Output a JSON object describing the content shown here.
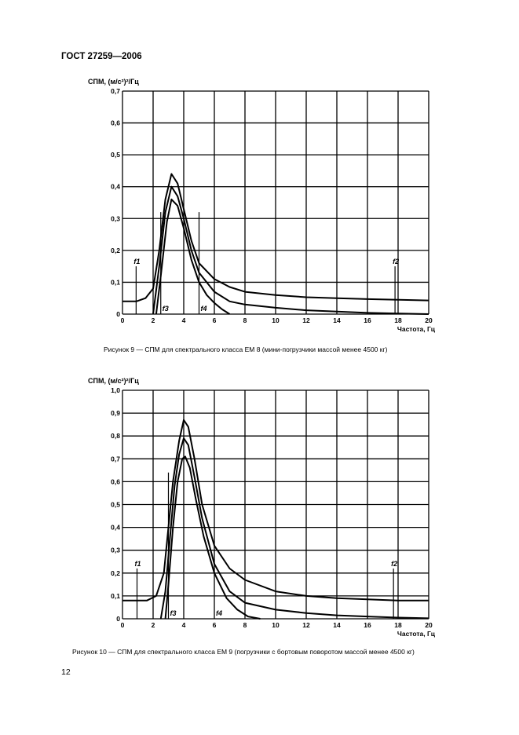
{
  "header": {
    "doc_title": "ГОСТ 27259—2006"
  },
  "page_number": "12",
  "chart_data": [
    {
      "type": "line",
      "ylabel": "СПМ, (м/с²)²/Гц",
      "xlabel": "Частота, Гц",
      "xlim": [
        0,
        20
      ],
      "ylim": [
        0,
        0.7
      ],
      "x_ticks": [
        "0",
        "2",
        "4",
        "6",
        "8",
        "10",
        "12",
        "14",
        "16",
        "18",
        "20"
      ],
      "y_ticks": [
        "0",
        "0,1",
        "0,2",
        "0,3",
        "0,4",
        "0,5",
        "0,6",
        "0,7"
      ],
      "grid": true,
      "markers": [
        {
          "label": "f1",
          "x": 0.89,
          "y_top": 0.15
        },
        {
          "label": "f2",
          "x": 17.8,
          "y_top": 0.15
        },
        {
          "label": "f3",
          "x": 2.5,
          "y_top": 0.32
        },
        {
          "label": "f4",
          "x": 5.0,
          "y_top": 0.32
        }
      ],
      "series": [
        {
          "kind": "upper",
          "values": [
            [
              0,
              0.04
            ],
            [
              0.9,
              0.04
            ],
            [
              1.5,
              0.05
            ],
            [
              2.0,
              0.08
            ],
            [
              2.4,
              0.2
            ],
            [
              2.8,
              0.36
            ],
            [
              3.2,
              0.44
            ],
            [
              3.6,
              0.41
            ],
            [
              4.0,
              0.33
            ],
            [
              4.5,
              0.23
            ],
            [
              5.0,
              0.16
            ],
            [
              6.0,
              0.11
            ],
            [
              7.0,
              0.085
            ],
            [
              8.0,
              0.07
            ],
            [
              10,
              0.06
            ],
            [
              12,
              0.053
            ],
            [
              14,
              0.05
            ],
            [
              16,
              0.047
            ],
            [
              18,
              0.045
            ],
            [
              20,
              0.043
            ]
          ]
        },
        {
          "kind": "nominal",
          "values": [
            [
              2.0,
              0.0
            ],
            [
              2.4,
              0.15
            ],
            [
              2.8,
              0.32
            ],
            [
              3.2,
              0.4
            ],
            [
              3.6,
              0.37
            ],
            [
              4.0,
              0.3
            ],
            [
              4.5,
              0.2
            ],
            [
              5.0,
              0.13
            ],
            [
              6.0,
              0.07
            ],
            [
              7.0,
              0.04
            ],
            [
              8.0,
              0.03
            ],
            [
              10,
              0.02
            ],
            [
              12,
              0.012
            ],
            [
              14,
              0.008
            ],
            [
              16,
              0.004
            ],
            [
              18,
              0.002
            ],
            [
              20,
              0.0
            ]
          ]
        },
        {
          "kind": "lower",
          "values": [
            [
              2.2,
              0.0
            ],
            [
              2.5,
              0.12
            ],
            [
              2.9,
              0.29
            ],
            [
              3.2,
              0.36
            ],
            [
              3.6,
              0.34
            ],
            [
              4.0,
              0.27
            ],
            [
              4.5,
              0.17
            ],
            [
              5.0,
              0.1
            ],
            [
              5.5,
              0.06
            ],
            [
              6.0,
              0.035
            ],
            [
              6.5,
              0.015
            ],
            [
              7.0,
              0.0
            ]
          ]
        }
      ]
    },
    {
      "type": "line",
      "ylabel": "СПМ, (м/с²)²/Гц",
      "xlabel": "Частота, Гц",
      "xlim": [
        0,
        20
      ],
      "ylim": [
        0,
        1.0
      ],
      "x_ticks": [
        "0",
        "2",
        "4",
        "6",
        "8",
        "10",
        "12",
        "14",
        "16",
        "18",
        "20"
      ],
      "y_ticks": [
        "0",
        "0,1",
        "0,2",
        "0,3",
        "0,4",
        "0,5",
        "0,6",
        "0,7",
        "0,8",
        "0,9",
        "1,0"
      ],
      "grid": true,
      "markers": [
        {
          "label": "f1",
          "x": 0.95,
          "y_top": 0.22
        },
        {
          "label": "f2",
          "x": 17.7,
          "y_top": 0.22
        },
        {
          "label": "f3",
          "x": 3.0,
          "y_top": 0.64
        },
        {
          "label": "f4",
          "x": 6.0,
          "y_top": 0.0
        }
      ],
      "series": [
        {
          "kind": "upper",
          "values": [
            [
              0,
              0.08
            ],
            [
              0.9,
              0.08
            ],
            [
              1.6,
              0.08
            ],
            [
              2.2,
              0.1
            ],
            [
              2.7,
              0.2
            ],
            [
              3.0,
              0.4
            ],
            [
              3.3,
              0.6
            ],
            [
              3.7,
              0.78
            ],
            [
              4.0,
              0.87
            ],
            [
              4.3,
              0.84
            ],
            [
              4.7,
              0.7
            ],
            [
              5.2,
              0.5
            ],
            [
              6.0,
              0.32
            ],
            [
              7.0,
              0.22
            ],
            [
              8.0,
              0.17
            ],
            [
              10,
              0.12
            ],
            [
              12,
              0.1
            ],
            [
              14,
              0.09
            ],
            [
              16,
              0.085
            ],
            [
              18,
              0.08
            ],
            [
              20,
              0.08
            ]
          ]
        },
        {
          "kind": "nominal",
          "values": [
            [
              2.5,
              0.0
            ],
            [
              2.8,
              0.12
            ],
            [
              3.1,
              0.35
            ],
            [
              3.4,
              0.58
            ],
            [
              3.7,
              0.72
            ],
            [
              4.0,
              0.79
            ],
            [
              4.3,
              0.76
            ],
            [
              4.7,
              0.62
            ],
            [
              5.2,
              0.44
            ],
            [
              6.0,
              0.24
            ],
            [
              7.0,
              0.12
            ],
            [
              8.0,
              0.07
            ],
            [
              10,
              0.04
            ],
            [
              12,
              0.025
            ],
            [
              14,
              0.015
            ],
            [
              16,
              0.01
            ],
            [
              18,
              0.005
            ],
            [
              20,
              0.002
            ]
          ]
        },
        {
          "kind": "lower",
          "values": [
            [
              2.8,
              0.0
            ],
            [
              3.0,
              0.15
            ],
            [
              3.3,
              0.4
            ],
            [
              3.6,
              0.6
            ],
            [
              3.9,
              0.7
            ],
            [
              4.1,
              0.71
            ],
            [
              4.4,
              0.66
            ],
            [
              4.8,
              0.52
            ],
            [
              5.3,
              0.36
            ],
            [
              6.0,
              0.2
            ],
            [
              6.8,
              0.09
            ],
            [
              7.5,
              0.04
            ],
            [
              8.2,
              0.01
            ],
            [
              9.0,
              0.0
            ]
          ]
        }
      ]
    }
  ],
  "captions": {
    "fig9": "Рисунок 9 — СПМ для спектрального класса ЕМ 8 (мини-погрузчики массой менее 4500 кг)",
    "fig10": "Рисунок 10 — СПМ для спектрального класса ЕМ 9 (погрузчики с бортовым поворотом массой менее 4500 кг)"
  }
}
